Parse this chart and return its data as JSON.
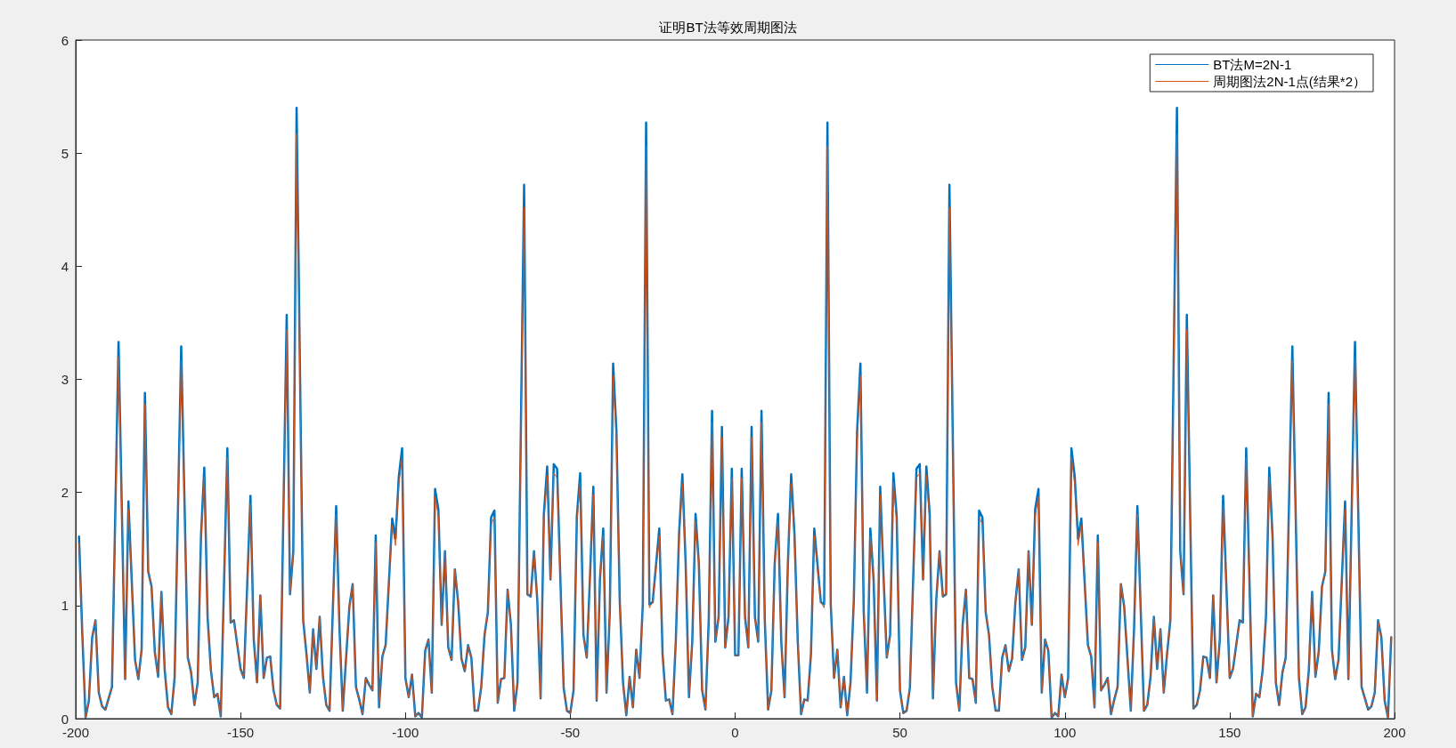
{
  "chart_data": {
    "type": "line",
    "title": "证明BT法等效周期图法",
    "xlim": [
      -200,
      200
    ],
    "xticks": [
      -200,
      -150,
      -100,
      -50,
      0,
      50,
      100,
      150,
      200
    ],
    "ylim": [
      0,
      6
    ],
    "yticks": [
      0,
      1,
      2,
      3,
      4,
      5,
      6
    ],
    "legend": "top right",
    "x": [
      -199,
      -198,
      -197,
      -196,
      -195,
      -194,
      -193,
      -192,
      -191,
      -189,
      -187,
      -185,
      -184,
      -182,
      -181,
      -180,
      -179,
      -178,
      -177,
      -176,
      -175,
      -174,
      -173,
      -172,
      -171,
      -170,
      -168,
      -166,
      -165,
      -164,
      -163,
      -162,
      -161,
      -160,
      -159,
      -158,
      -157,
      -156,
      -154,
      -153,
      -152,
      -150,
      -149,
      -147,
      -146,
      -145,
      -144,
      -143,
      -142,
      -141,
      -140,
      -139,
      -138,
      -136,
      -135,
      -134,
      -133,
      -131,
      -130,
      -129,
      -128,
      -127,
      -126,
      -125,
      -124,
      -123,
      -121,
      -120,
      -119,
      -117,
      -116,
      -115,
      -114,
      -113,
      -112,
      -111,
      -110,
      -109,
      -108,
      -107,
      -106,
      -104,
      -103,
      -102,
      -101,
      -100,
      -99,
      -98,
      -97,
      -96,
      -95,
      -94,
      -93,
      -92,
      -91,
      -90,
      -89,
      -88,
      -87,
      -86,
      -85,
      -84,
      -83,
      -82,
      -81,
      -80,
      -79,
      -78,
      -77,
      -76,
      -75,
      -74,
      -73,
      -72,
      -71,
      -70,
      -69,
      -68,
      -67,
      -66,
      -64,
      -63,
      -62,
      -61,
      -60,
      -59,
      -58,
      -57,
      -56,
      -55,
      -54,
      -53,
      -52,
      -51,
      -50,
      -49,
      -48,
      -47,
      -46,
      -45,
      -44,
      -43,
      -42,
      -41,
      -40,
      -39,
      -38,
      -37,
      -36,
      -35,
      -34,
      -33,
      -32,
      -31,
      -30,
      -29,
      -28,
      -27,
      -26,
      -25,
      -23,
      -22,
      -21,
      -20,
      -19,
      -18,
      -17,
      -16,
      -15,
      -14,
      -13,
      -12,
      -11,
      -10,
      -9,
      -8,
      -7,
      -6,
      -5,
      -4,
      -3,
      -2,
      -1,
      0,
      1,
      2,
      3,
      4,
      5,
      6,
      7,
      8,
      9,
      10,
      11,
      12,
      13,
      14,
      15,
      16,
      17,
      18,
      19,
      20,
      21,
      22,
      23,
      24,
      26,
      27,
      28,
      29,
      30,
      31,
      32,
      33,
      34,
      35,
      36,
      37,
      38,
      39,
      40,
      41,
      42,
      43,
      44,
      45,
      46,
      47,
      48,
      49,
      50,
      51,
      52,
      53,
      54,
      55,
      56,
      57,
      58,
      59,
      60,
      61,
      62,
      63,
      64,
      65,
      67,
      68,
      69,
      70,
      71,
      72,
      73,
      74,
      75,
      76,
      77,
      78,
      79,
      80,
      81,
      82,
      83,
      84,
      85,
      86,
      87,
      88,
      89,
      90,
      91,
      92,
      93,
      94,
      95,
      96,
      97,
      98,
      99,
      100,
      101,
      102,
      103,
      104,
      105,
      107,
      108,
      109,
      110,
      111,
      112,
      113,
      114,
      115,
      116,
      117,
      118,
      120,
      121,
      122,
      124,
      125,
      126,
      127,
      128,
      129,
      130,
      131,
      132,
      134,
      135,
      136,
      137,
      139,
      140,
      141,
      142,
      143,
      144,
      145,
      146,
      147,
      148,
      150,
      151,
      153,
      154,
      155,
      157,
      158,
      159,
      160,
      161,
      162,
      163,
      164,
      165,
      166,
      167,
      169,
      171,
      172,
      173,
      174,
      175,
      176,
      177,
      178,
      179,
      180,
      181,
      182,
      183,
      185,
      186,
      188,
      190,
      192,
      193,
      194,
      195,
      196,
      197,
      198,
      199
    ],
    "series": [
      {
        "name": "BT法M=2N-1",
        "color": "#0072bd",
        "values": [
          1.61,
          0.75,
          0.01,
          0.16,
          0.72,
          0.87,
          0.23,
          0.11,
          0.08,
          0.28,
          3.33,
          0.35,
          1.92,
          0.52,
          0.35,
          0.61,
          2.88,
          1.3,
          1.17,
          0.59,
          0.37,
          1.12,
          0.43,
          0.1,
          0.04,
          0.36,
          3.29,
          0.54,
          0.41,
          0.12,
          0.32,
          1.61,
          2.22,
          0.9,
          0.43,
          0.19,
          0.22,
          0.02,
          2.39,
          0.85,
          0.87,
          0.44,
          0.36,
          1.97,
          0.7,
          0.32,
          1.09,
          0.36,
          0.54,
          0.55,
          0.25,
          0.12,
          0.09,
          3.57,
          1.1,
          1.48,
          5.4,
          0.87,
          0.57,
          0.23,
          0.79,
          0.44,
          0.9,
          0.37,
          0.12,
          0.07,
          1.88,
          0.8,
          0.07,
          0.99,
          1.19,
          0.28,
          0.17,
          0.04,
          0.36,
          0.3,
          0.25,
          1.62,
          0.1,
          0.55,
          0.65,
          1.77,
          1.59,
          2.14,
          2.39,
          0.36,
          0.19,
          0.39,
          0.02,
          0.05,
          0.01,
          0.6,
          0.7,
          0.23,
          2.03,
          1.85,
          0.83,
          1.48,
          0.63,
          0.52,
          1.32,
          1.03,
          0.53,
          0.42,
          0.65,
          0.54,
          0.07,
          0.07,
          0.28,
          0.74,
          0.94,
          1.78,
          1.84,
          0.14,
          0.35,
          0.36,
          1.14,
          0.83,
          0.07,
          0.32,
          4.72,
          1.1,
          1.08,
          1.48,
          1.05,
          0.18,
          1.81,
          2.23,
          1.23,
          2.25,
          2.21,
          1.23,
          0.27,
          0.07,
          0.05,
          0.25,
          1.79,
          2.17,
          0.74,
          0.54,
          1.27,
          2.05,
          0.16,
          1.23,
          1.68,
          0.23,
          0.95,
          3.14,
          2.54,
          1.05,
          0.32,
          0.03,
          0.37,
          0.1,
          0.61,
          0.36,
          1.01,
          5.27,
          1.01,
          1.03,
          1.68,
          0.57,
          0.16,
          0.17,
          0.04,
          0.68,
          1.63,
          2.16,
          1.37,
          0.19,
          0.68,
          1.81,
          1.37,
          0.25,
          0.08,
          0.87,
          2.72,
          0.68,
          0.9,
          2.58,
          0.63,
          0.9,
          2.21,
          0.56,
          0.56,
          2.21,
          0.9,
          0.63,
          2.58,
          0.9,
          0.68,
          2.72,
          0.87,
          0.08,
          0.25,
          1.37,
          1.81,
          0.68,
          0.19,
          1.37,
          2.16,
          1.63,
          0.68,
          0.04,
          0.17,
          0.16,
          0.57,
          1.68,
          1.03,
          1.01,
          5.27,
          1.01,
          0.36,
          0.61,
          0.1,
          0.37,
          0.03,
          0.32,
          1.05,
          2.54,
          3.14,
          0.95,
          0.23,
          1.68,
          1.23,
          0.16,
          2.05,
          1.27,
          0.54,
          0.74,
          2.17,
          1.79,
          0.25,
          0.05,
          0.07,
          0.27,
          1.23,
          2.21,
          2.25,
          1.23,
          2.23,
          1.81,
          0.18,
          1.05,
          1.48,
          1.08,
          1.1,
          4.72,
          0.32,
          0.07,
          0.83,
          1.14,
          0.36,
          0.35,
          0.14,
          1.84,
          1.78,
          0.94,
          0.74,
          0.28,
          0.07,
          0.07,
          0.54,
          0.65,
          0.42,
          0.53,
          1.03,
          1.32,
          0.52,
          0.63,
          1.48,
          0.83,
          1.85,
          2.03,
          0.23,
          0.7,
          0.6,
          0.01,
          0.05,
          0.02,
          0.39,
          0.19,
          0.36,
          2.39,
          2.14,
          1.59,
          1.77,
          0.65,
          0.55,
          0.1,
          1.62,
          0.25,
          0.3,
          0.36,
          0.04,
          0.17,
          0.28,
          1.19,
          0.99,
          0.07,
          0.8,
          1.88,
          0.07,
          0.12,
          0.37,
          0.9,
          0.44,
          0.79,
          0.23,
          0.57,
          0.87,
          5.4,
          1.48,
          1.1,
          3.57,
          0.09,
          0.12,
          0.25,
          0.55,
          0.54,
          0.36,
          1.09,
          0.32,
          0.7,
          1.97,
          0.36,
          0.44,
          0.87,
          0.85,
          2.39,
          0.02,
          0.22,
          0.19,
          0.43,
          0.9,
          2.22,
          1.61,
          0.32,
          0.12,
          0.41,
          0.54,
          3.29,
          0.36,
          0.04,
          0.1,
          0.43,
          1.12,
          0.37,
          0.59,
          1.17,
          1.3,
          2.88,
          0.61,
          0.35,
          0.52,
          1.92,
          0.35,
          3.33,
          0.28,
          0.08,
          0.11,
          0.23,
          0.87,
          0.72,
          0.16,
          0.01,
          0.72
        ]
      },
      {
        "name": "周期图法2N-1点(结果*2）",
        "color": "#d95319",
        "values": [
          1.55,
          0.75,
          0.01,
          0.16,
          0.72,
          0.87,
          0.23,
          0.11,
          0.08,
          0.28,
          3.2,
          0.35,
          1.85,
          0.52,
          0.35,
          0.61,
          2.78,
          1.3,
          1.17,
          0.59,
          0.37,
          1.12,
          0.43,
          0.1,
          0.04,
          0.36,
          3.17,
          0.54,
          0.41,
          0.12,
          0.32,
          1.55,
          2.14,
          0.9,
          0.43,
          0.19,
          0.22,
          0.02,
          2.31,
          0.85,
          0.87,
          0.44,
          0.36,
          1.9,
          0.7,
          0.32,
          1.09,
          0.36,
          0.54,
          0.55,
          0.25,
          0.12,
          0.09,
          3.44,
          1.1,
          1.48,
          5.17,
          0.87,
          0.57,
          0.23,
          0.79,
          0.44,
          0.9,
          0.37,
          0.12,
          0.07,
          1.81,
          0.8,
          0.07,
          0.99,
          1.19,
          0.28,
          0.17,
          0.04,
          0.36,
          0.3,
          0.25,
          1.56,
          0.1,
          0.55,
          0.65,
          1.71,
          1.53,
          2.07,
          2.31,
          0.36,
          0.19,
          0.39,
          0.02,
          0.05,
          0.01,
          0.6,
          0.7,
          0.23,
          1.96,
          1.79,
          0.83,
          1.48,
          0.63,
          0.52,
          1.32,
          1.03,
          0.53,
          0.42,
          0.65,
          0.54,
          0.07,
          0.07,
          0.28,
          0.74,
          0.94,
          1.72,
          1.78,
          0.14,
          0.35,
          0.36,
          1.14,
          0.83,
          0.07,
          0.32,
          4.52,
          1.1,
          1.08,
          1.48,
          1.05,
          0.18,
          1.75,
          2.15,
          1.23,
          2.17,
          2.13,
          1.23,
          0.27,
          0.07,
          0.05,
          0.25,
          1.73,
          2.09,
          0.74,
          0.54,
          1.27,
          1.98,
          0.16,
          1.23,
          1.62,
          0.23,
          0.95,
          3.03,
          2.45,
          1.05,
          0.32,
          0.03,
          0.37,
          0.1,
          0.61,
          0.36,
          0.98,
          5.06,
          0.98,
          1.03,
          1.62,
          0.57,
          0.16,
          0.17,
          0.04,
          0.68,
          1.57,
          2.08,
          1.37,
          0.19,
          0.68,
          1.75,
          1.37,
          0.25,
          0.08,
          0.87,
          2.62,
          0.68,
          0.9,
          2.49,
          0.63,
          0.9,
          2.13,
          0.56,
          0.56,
          2.13,
          0.9,
          0.63,
          2.49,
          0.9,
          0.68,
          2.62,
          0.87,
          0.08,
          0.25,
          1.37,
          1.75,
          0.68,
          0.19,
          1.37,
          2.08,
          1.57,
          0.68,
          0.04,
          0.17,
          0.16,
          0.57,
          1.62,
          1.03,
          0.98,
          5.06,
          0.98,
          0.36,
          0.61,
          0.1,
          0.37,
          0.03,
          0.32,
          1.05,
          2.45,
          3.03,
          0.95,
          0.23,
          1.62,
          1.23,
          0.16,
          1.98,
          1.27,
          0.54,
          0.74,
          2.09,
          1.73,
          0.25,
          0.05,
          0.07,
          0.27,
          1.23,
          2.13,
          2.17,
          1.23,
          2.15,
          1.75,
          0.18,
          1.05,
          1.48,
          1.08,
          1.1,
          4.52,
          0.32,
          0.07,
          0.83,
          1.14,
          0.36,
          0.35,
          0.14,
          1.78,
          1.72,
          0.94,
          0.74,
          0.28,
          0.07,
          0.07,
          0.54,
          0.65,
          0.42,
          0.53,
          1.03,
          1.32,
          0.52,
          0.63,
          1.48,
          0.83,
          1.79,
          1.96,
          0.23,
          0.7,
          0.6,
          0.01,
          0.05,
          0.02,
          0.39,
          0.19,
          0.36,
          2.31,
          2.07,
          1.53,
          1.71,
          0.65,
          0.55,
          0.1,
          1.56,
          0.25,
          0.3,
          0.36,
          0.04,
          0.17,
          0.28,
          1.19,
          0.99,
          0.07,
          0.8,
          1.81,
          0.07,
          0.12,
          0.37,
          0.9,
          0.44,
          0.79,
          0.23,
          0.57,
          0.87,
          5.17,
          1.48,
          1.1,
          3.44,
          0.09,
          0.12,
          0.25,
          0.55,
          0.54,
          0.36,
          1.09,
          0.32,
          0.7,
          1.9,
          0.36,
          0.44,
          0.87,
          0.85,
          2.31,
          0.02,
          0.22,
          0.19,
          0.43,
          0.9,
          2.14,
          1.55,
          0.32,
          0.12,
          0.41,
          0.54,
          3.17,
          0.36,
          0.04,
          0.1,
          0.43,
          1.12,
          0.37,
          0.59,
          1.17,
          1.3,
          2.78,
          0.61,
          0.35,
          0.52,
          1.85,
          0.35,
          3.2,
          0.28,
          0.08,
          0.11,
          0.23,
          0.87,
          0.72,
          0.16,
          0.01,
          0.72
        ]
      }
    ]
  }
}
